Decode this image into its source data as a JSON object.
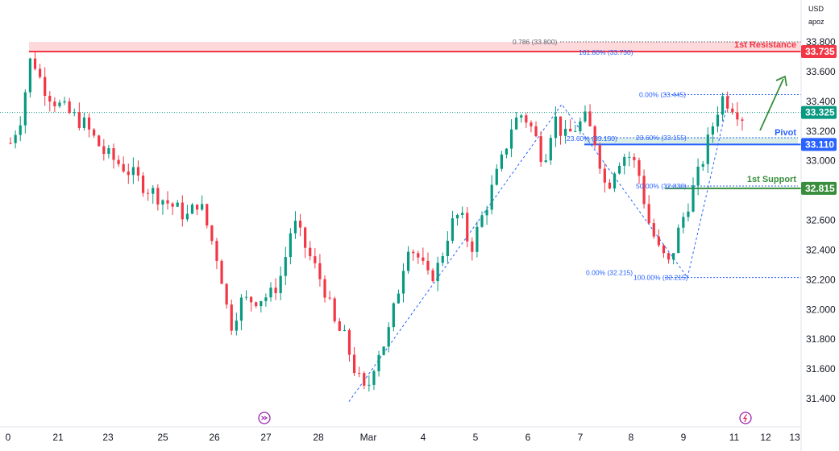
{
  "header": {
    "currency": "USD",
    "scale_mode": "apoz"
  },
  "chart_data": {
    "type": "candlestick",
    "y_axis": {
      "ticks": [
        "33.800",
        "33.600",
        "33.400",
        "33.200",
        "33.000",
        "32.800",
        "32.600",
        "32.400",
        "32.200",
        "32.000",
        "31.800",
        "31.600",
        "31.400"
      ],
      "ylim": [
        31.31,
        33.88
      ]
    },
    "x_axis": {
      "ticks": [
        "0",
        "21",
        "23",
        "25",
        "26",
        "27",
        "28",
        "Mar",
        "4",
        "5",
        "6",
        "7",
        "8",
        "9",
        "11",
        "12",
        "13"
      ]
    },
    "price_labels": [
      {
        "id": "resistance",
        "value": "33.735",
        "color": "#f23645"
      },
      {
        "id": "current",
        "value": "33.325",
        "color": "#089981"
      },
      {
        "id": "pivot",
        "value": "33.110",
        "color": "#2962ff"
      },
      {
        "id": "support",
        "value": "32.815",
        "color": "#388e3c"
      }
    ],
    "levels": [
      {
        "id": "resistance",
        "name": "1st Resistance",
        "value": 33.735,
        "color": "#f23645"
      },
      {
        "id": "pivot",
        "name": "Pivot",
        "value": 33.11,
        "color": "#2962ff"
      },
      {
        "id": "support",
        "name": "1st Support",
        "value": 32.815,
        "color": "#388e3c"
      }
    ],
    "fib_labels": [
      {
        "text": "0.786 (33.800)",
        "value": 33.8
      },
      {
        "text": "161.80% (33.730)",
        "value": 33.73
      },
      {
        "text": "0.00% (33.445)",
        "value": 33.445
      },
      {
        "text": "23.60% (33.150)",
        "value": 33.15
      },
      {
        "text": "23.60% (33.155)",
        "value": 33.155
      },
      {
        "text": "50.00% (32.830)",
        "value": 32.83
      },
      {
        "text": "0.00% (32.215)",
        "value": 32.215
      },
      {
        "text": "100.00% (32.215)",
        "value": 32.215
      }
    ],
    "colors": {
      "up": "#089981",
      "down": "#f23645",
      "zone": "#fdd9dc",
      "pivot_zone": "#dcefe6"
    },
    "path": [
      [
        0,
        33.12
      ],
      [
        1,
        33.3
      ],
      [
        2,
        33.72
      ],
      [
        3,
        33.52
      ],
      [
        4,
        33.42
      ],
      [
        5,
        33.35
      ],
      [
        7,
        33.25
      ],
      [
        9,
        33.05
      ],
      [
        11,
        32.95
      ],
      [
        13,
        32.82
      ],
      [
        15,
        32.72
      ],
      [
        17,
        32.62
      ],
      [
        18,
        32.74
      ],
      [
        19,
        32.52
      ],
      [
        20,
        32.3
      ],
      [
        21,
        31.88
      ],
      [
        22,
        32.05
      ],
      [
        24,
        32.08
      ],
      [
        25,
        32.1
      ],
      [
        26,
        32.25
      ],
      [
        27,
        32.6
      ],
      [
        28,
        32.45
      ],
      [
        29,
        32.3
      ],
      [
        30,
        32.15
      ],
      [
        31,
        31.9
      ],
      [
        32,
        31.8
      ],
      [
        33,
        31.58
      ],
      [
        34,
        31.42
      ],
      [
        35,
        31.7
      ],
      [
        36,
        31.8
      ],
      [
        37,
        32.1
      ],
      [
        38,
        32.45
      ],
      [
        39,
        32.35
      ],
      [
        40,
        32.2
      ],
      [
        41,
        32.3
      ],
      [
        42,
        32.55
      ],
      [
        43,
        32.65
      ],
      [
        44,
        32.4
      ],
      [
        45,
        32.6
      ],
      [
        46,
        32.8
      ],
      [
        47,
        33.0
      ],
      [
        48,
        33.25
      ],
      [
        49,
        33.32
      ],
      [
        50,
        33.2
      ],
      [
        51,
        33.0
      ],
      [
        52,
        33.3
      ],
      [
        53,
        33.15
      ],
      [
        54,
        33.22
      ],
      [
        55,
        33.28
      ],
      [
        56,
        33.12
      ],
      [
        57,
        32.8
      ],
      [
        58,
        33.0
      ],
      [
        59,
        33.05
      ],
      [
        60,
        32.95
      ],
      [
        61,
        32.6
      ],
      [
        62,
        32.4
      ],
      [
        63,
        32.3
      ],
      [
        64,
        32.55
      ],
      [
        65,
        32.75
      ],
      [
        66,
        32.95
      ],
      [
        67,
        33.2
      ],
      [
        68,
        33.43
      ],
      [
        69,
        33.38
      ],
      [
        70,
        33.3
      ]
    ]
  }
}
